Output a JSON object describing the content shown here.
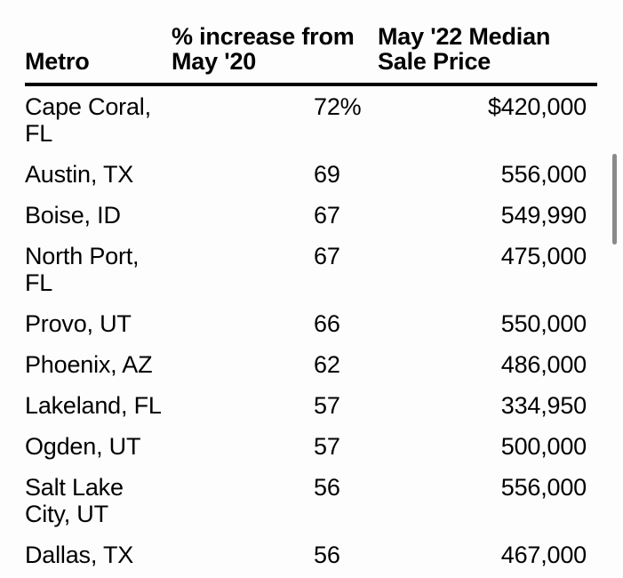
{
  "table": {
    "headers": {
      "metro": "Metro",
      "increase": "% increase from May '20",
      "price": "May '22 Median Sale Price"
    },
    "rows": [
      {
        "metro": "Cape Coral, FL",
        "increase": "72%",
        "price": "$420,000"
      },
      {
        "metro": "Austin, TX",
        "increase": "69",
        "price": "556,000"
      },
      {
        "metro": "Boise, ID",
        "increase": "67",
        "price": "549,990"
      },
      {
        "metro": "North Port, FL",
        "increase": "67",
        "price": "475,000"
      },
      {
        "metro": "Provo, UT",
        "increase": "66",
        "price": "550,000"
      },
      {
        "metro": "Phoenix, AZ",
        "increase": "62",
        "price": "486,000"
      },
      {
        "metro": "Lakeland, FL",
        "increase": "57",
        "price": "334,950"
      },
      {
        "metro": "Ogden, UT",
        "increase": "57",
        "price": "500,000"
      },
      {
        "metro": "Salt Lake City, UT",
        "increase": "56",
        "price": "556,000"
      },
      {
        "metro": "Dallas, TX",
        "increase": "56",
        "price": "467,000"
      }
    ]
  },
  "icons": {
    "scrollbar_thumb": "vertical-scrollbar-thumb"
  },
  "colors": {
    "text": "#000000",
    "background": "#fdfdfd",
    "header_divider": "#000000",
    "scrollbar_thumb": "#8a8a8a"
  },
  "chart_data": {
    "type": "table",
    "title": "",
    "columns": [
      "Metro",
      "% increase from May '20",
      "May '22 Median Sale Price"
    ],
    "rows": [
      [
        "Cape Coral, FL",
        72,
        420000
      ],
      [
        "Austin, TX",
        69,
        556000
      ],
      [
        "Boise, ID",
        67,
        549990
      ],
      [
        "North Port, FL",
        67,
        475000
      ],
      [
        "Provo, UT",
        66,
        550000
      ],
      [
        "Phoenix, AZ",
        62,
        486000
      ],
      [
        "Lakeland, FL",
        57,
        334950
      ],
      [
        "Ogden, UT",
        57,
        500000
      ],
      [
        "Salt Lake City, UT",
        56,
        556000
      ],
      [
        "Dallas, TX",
        56,
        467000
      ]
    ],
    "notes": "Percent values shown with % only on first row; prices shown with $ only on first row; price column right-aligned"
  }
}
